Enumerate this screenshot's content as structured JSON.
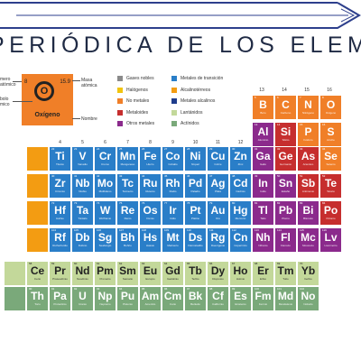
{
  "title": "PERIÓDICA DE LOS ELEMENTOS",
  "colors": {
    "gases_nobles": "#8a8a8a",
    "halogenos": "#f1c40f",
    "no_metales": "#f07f28",
    "metaloides": "#c62e2e",
    "otros_metales": "#8b2a8c",
    "transicion": "#2a7ec8",
    "alcalinoterreos": "#f39c12",
    "alcalinos": "#1e3c8c",
    "lantanidos": "#c3d89a",
    "actinidos": "#7aa97a",
    "title_text": "#1f2a44",
    "arrow": "#2d3f8c"
  },
  "legend": [
    {
      "name": "Gases nobles",
      "color": "#8a8a8a"
    },
    {
      "name": "Halógenos",
      "color": "#f1c40f"
    },
    {
      "name": "No metales",
      "color": "#f07f28"
    },
    {
      "name": "Metaloides",
      "color": "#c62e2e"
    },
    {
      "name": "Otros metales",
      "color": "#8b2a8c"
    },
    {
      "name": "Metales de transición",
      "color": "#2a7ec8"
    },
    {
      "name": "Alcalinotérreos",
      "color": "#f39c12"
    },
    {
      "name": "Metales alcalinos",
      "color": "#1e3c8c"
    },
    {
      "name": "Lantánidos",
      "color": "#c3d89a"
    },
    {
      "name": "Actínidos",
      "color": "#7aa97a"
    }
  ],
  "key": {
    "number": "8",
    "mass": "15.9",
    "symbol": "O",
    "name": "Oxígeno",
    "label_number": "mero\natómico",
    "label_symbol": "bolo\nmico",
    "label_mass": "Masa\natómica",
    "label_name": "Nombre"
  },
  "group_numbers_top": [
    "13",
    "14",
    "15",
    "16"
  ],
  "group_numbers_mid": [
    "4",
    "5",
    "6",
    "7",
    "8",
    "9",
    "10",
    "11",
    "12"
  ],
  "elements": [
    {
      "row": 0,
      "col": 0,
      "sym": "B",
      "name": "Boro",
      "num": "5",
      "color": "#f07f28"
    },
    {
      "row": 0,
      "col": 1,
      "sym": "C",
      "name": "Carbono",
      "num": "6",
      "color": "#f07f28"
    },
    {
      "row": 0,
      "col": 2,
      "sym": "N",
      "name": "Nitrógeno",
      "num": "7",
      "color": "#f07f28"
    },
    {
      "row": 0,
      "col": 3,
      "sym": "O",
      "name": "Oxígeno",
      "num": "8",
      "color": "#f07f28"
    },
    {
      "row": 1,
      "col": 0,
      "sym": "Al",
      "name": "Aluminio",
      "num": "13",
      "color": "#8b2a8c"
    },
    {
      "row": 1,
      "col": 1,
      "sym": "Si",
      "name": "Silicio",
      "num": "14",
      "color": "#c62e2e"
    },
    {
      "row": 1,
      "col": 2,
      "sym": "P",
      "name": "Fósforo",
      "num": "15",
      "color": "#f07f28"
    },
    {
      "row": 1,
      "col": 3,
      "sym": "S",
      "name": "Azufre",
      "num": "16",
      "color": "#f07f28"
    },
    {
      "row": 2,
      "col": -9,
      "sym": "Ti",
      "name": "Titanio",
      "num": "22",
      "color": "#2a7ec8"
    },
    {
      "row": 2,
      "col": -8,
      "sym": "V",
      "name": "Vanadio",
      "num": "23",
      "color": "#2a7ec8"
    },
    {
      "row": 2,
      "col": -7,
      "sym": "Cr",
      "name": "Cromo",
      "num": "24",
      "color": "#2a7ec8"
    },
    {
      "row": 2,
      "col": -6,
      "sym": "Mn",
      "name": "Manganeso",
      "num": "25",
      "color": "#2a7ec8"
    },
    {
      "row": 2,
      "col": -5,
      "sym": "Fe",
      "name": "Hierro",
      "num": "26",
      "color": "#2a7ec8"
    },
    {
      "row": 2,
      "col": -4,
      "sym": "Co",
      "name": "Cobalto",
      "num": "27",
      "color": "#2a7ec8"
    },
    {
      "row": 2,
      "col": -3,
      "sym": "Ni",
      "name": "Níquel",
      "num": "28",
      "color": "#2a7ec8"
    },
    {
      "row": 2,
      "col": -2,
      "sym": "Cu",
      "name": "Cobre",
      "num": "29",
      "color": "#2a7ec8"
    },
    {
      "row": 2,
      "col": -1,
      "sym": "Zn",
      "name": "Zinc",
      "num": "30",
      "color": "#2a7ec8"
    },
    {
      "row": 2,
      "col": 0,
      "sym": "Ga",
      "name": "Galio",
      "num": "31",
      "color": "#8b2a8c"
    },
    {
      "row": 2,
      "col": 1,
      "sym": "Ge",
      "name": "Germanio",
      "num": "32",
      "color": "#c62e2e"
    },
    {
      "row": 2,
      "col": 2,
      "sym": "As",
      "name": "Arsénico",
      "num": "33",
      "color": "#c62e2e"
    },
    {
      "row": 2,
      "col": 3,
      "sym": "Se",
      "name": "Selenio",
      "num": "34",
      "color": "#f07f28"
    },
    {
      "row": 3,
      "col": -9,
      "sym": "Zr",
      "name": "Circonio",
      "num": "40",
      "color": "#2a7ec8"
    },
    {
      "row": 3,
      "col": -8,
      "sym": "Nb",
      "name": "Niobio",
      "num": "41",
      "color": "#2a7ec8"
    },
    {
      "row": 3,
      "col": -7,
      "sym": "Mo",
      "name": "Molibdeno",
      "num": "42",
      "color": "#2a7ec8"
    },
    {
      "row": 3,
      "col": -6,
      "sym": "Tc",
      "name": "Tecnecio",
      "num": "43",
      "color": "#2a7ec8"
    },
    {
      "row": 3,
      "col": -5,
      "sym": "Ru",
      "name": "Rutenio",
      "num": "44",
      "color": "#2a7ec8"
    },
    {
      "row": 3,
      "col": -4,
      "sym": "Rh",
      "name": "Rodio",
      "num": "45",
      "color": "#2a7ec8"
    },
    {
      "row": 3,
      "col": -3,
      "sym": "Pd",
      "name": "Paladio",
      "num": "46",
      "color": "#2a7ec8"
    },
    {
      "row": 3,
      "col": -2,
      "sym": "Ag",
      "name": "Plata",
      "num": "47",
      "color": "#2a7ec8"
    },
    {
      "row": 3,
      "col": -1,
      "sym": "Cd",
      "name": "Cadmio",
      "num": "48",
      "color": "#2a7ec8"
    },
    {
      "row": 3,
      "col": 0,
      "sym": "In",
      "name": "Indio",
      "num": "49",
      "color": "#8b2a8c"
    },
    {
      "row": 3,
      "col": 1,
      "sym": "Sn",
      "name": "Estaño",
      "num": "50",
      "color": "#8b2a8c"
    },
    {
      "row": 3,
      "col": 2,
      "sym": "Sb",
      "name": "Antimonio",
      "num": "51",
      "color": "#c62e2e"
    },
    {
      "row": 3,
      "col": 3,
      "sym": "Te",
      "name": "Telurio",
      "num": "52",
      "color": "#c62e2e"
    },
    {
      "row": 4,
      "col": -9,
      "sym": "Hf",
      "name": "Hafnio",
      "num": "72",
      "color": "#2a7ec8"
    },
    {
      "row": 4,
      "col": -8,
      "sym": "Ta",
      "name": "Tántalo",
      "num": "73",
      "color": "#2a7ec8"
    },
    {
      "row": 4,
      "col": -7,
      "sym": "W",
      "name": "Wolframio",
      "num": "74",
      "color": "#2a7ec8"
    },
    {
      "row": 4,
      "col": -6,
      "sym": "Re",
      "name": "Renio",
      "num": "75",
      "color": "#2a7ec8"
    },
    {
      "row": 4,
      "col": -5,
      "sym": "Os",
      "name": "Osmio",
      "num": "76",
      "color": "#2a7ec8"
    },
    {
      "row": 4,
      "col": -4,
      "sym": "Ir",
      "name": "Iridio",
      "num": "77",
      "color": "#2a7ec8"
    },
    {
      "row": 4,
      "col": -3,
      "sym": "Pt",
      "name": "Platino",
      "num": "78",
      "color": "#2a7ec8"
    },
    {
      "row": 4,
      "col": -2,
      "sym": "Au",
      "name": "Oro",
      "num": "79",
      "color": "#2a7ec8"
    },
    {
      "row": 4,
      "col": -1,
      "sym": "Hg",
      "name": "Mercurio",
      "num": "80",
      "color": "#2a7ec8"
    },
    {
      "row": 4,
      "col": 0,
      "sym": "Tl",
      "name": "Talio",
      "num": "81",
      "color": "#8b2a8c"
    },
    {
      "row": 4,
      "col": 1,
      "sym": "Pb",
      "name": "Plomo",
      "num": "82",
      "color": "#8b2a8c"
    },
    {
      "row": 4,
      "col": 2,
      "sym": "Bi",
      "name": "Bismuto",
      "num": "83",
      "color": "#8b2a8c"
    },
    {
      "row": 4,
      "col": 3,
      "sym": "Po",
      "name": "Polonio",
      "num": "84",
      "color": "#c62e2e"
    },
    {
      "row": 5,
      "col": -9,
      "sym": "Rf",
      "name": "Rutherfordio",
      "num": "104",
      "color": "#2a7ec8"
    },
    {
      "row": 5,
      "col": -8,
      "sym": "Db",
      "name": "Dubnio",
      "num": "105",
      "color": "#2a7ec8"
    },
    {
      "row": 5,
      "col": -7,
      "sym": "Sg",
      "name": "Seaborgio",
      "num": "106",
      "color": "#2a7ec8"
    },
    {
      "row": 5,
      "col": -6,
      "sym": "Bh",
      "name": "Bohrio",
      "num": "107",
      "color": "#2a7ec8"
    },
    {
      "row": 5,
      "col": -5,
      "sym": "Hs",
      "name": "Hassio",
      "num": "108",
      "color": "#2a7ec8"
    },
    {
      "row": 5,
      "col": -4,
      "sym": "Mt",
      "name": "Meitnerio",
      "num": "109",
      "color": "#2a7ec8"
    },
    {
      "row": 5,
      "col": -3,
      "sym": "Ds",
      "name": "Darmstadtio",
      "num": "110",
      "color": "#2a7ec8"
    },
    {
      "row": 5,
      "col": -2,
      "sym": "Rg",
      "name": "Roentgenio",
      "num": "111",
      "color": "#2a7ec8"
    },
    {
      "row": 5,
      "col": -1,
      "sym": "Cn",
      "name": "Copernicio",
      "num": "112",
      "color": "#2a7ec8"
    },
    {
      "row": 5,
      "col": 0,
      "sym": "Nh",
      "name": "Nihonio",
      "num": "113",
      "color": "#8b2a8c"
    },
    {
      "row": 5,
      "col": 1,
      "sym": "Fl",
      "name": "Flerovio",
      "num": "114",
      "color": "#8b2a8c"
    },
    {
      "row": 5,
      "col": 2,
      "sym": "Mc",
      "name": "Moscovio",
      "num": "115",
      "color": "#8b2a8c"
    },
    {
      "row": 5,
      "col": 3,
      "sym": "Lv",
      "name": "Livermorio",
      "num": "116",
      "color": "#8b2a8c"
    },
    {
      "row": 6,
      "col": -10,
      "sym": "Ce",
      "name": "Cerio",
      "num": "58",
      "color": "#c3d89a"
    },
    {
      "row": 6,
      "col": -9,
      "sym": "Pr",
      "name": "Praseodimio",
      "num": "59",
      "color": "#c3d89a"
    },
    {
      "row": 6,
      "col": -8,
      "sym": "Nd",
      "name": "Neodimio",
      "num": "60",
      "color": "#c3d89a"
    },
    {
      "row": 6,
      "col": -7,
      "sym": "Pm",
      "name": "Prometio",
      "num": "61",
      "color": "#c3d89a"
    },
    {
      "row": 6,
      "col": -6,
      "sym": "Sm",
      "name": "Samario",
      "num": "62",
      "color": "#c3d89a"
    },
    {
      "row": 6,
      "col": -5,
      "sym": "Eu",
      "name": "Europio",
      "num": "63",
      "color": "#c3d89a"
    },
    {
      "row": 6,
      "col": -4,
      "sym": "Gd",
      "name": "Gadolinio",
      "num": "64",
      "color": "#c3d89a"
    },
    {
      "row": 6,
      "col": -3,
      "sym": "Tb",
      "name": "Terbio",
      "num": "65",
      "color": "#c3d89a"
    },
    {
      "row": 6,
      "col": -2,
      "sym": "Dy",
      "name": "Disprosio",
      "num": "66",
      "color": "#c3d89a"
    },
    {
      "row": 6,
      "col": -1,
      "sym": "Ho",
      "name": "Holmio",
      "num": "67",
      "color": "#c3d89a"
    },
    {
      "row": 6,
      "col": 0,
      "sym": "Er",
      "name": "Erbio",
      "num": "68",
      "color": "#c3d89a"
    },
    {
      "row": 6,
      "col": 1,
      "sym": "Tm",
      "name": "Tulio",
      "num": "69",
      "color": "#c3d89a"
    },
    {
      "row": 6,
      "col": 2,
      "sym": "Yb",
      "name": "Iterbio",
      "num": "70",
      "color": "#c3d89a"
    },
    {
      "row": 7,
      "col": -10,
      "sym": "Th",
      "name": "Torio",
      "num": "90",
      "color": "#7aa97a"
    },
    {
      "row": 7,
      "col": -9,
      "sym": "Pa",
      "name": "Protactinio",
      "num": "91",
      "color": "#7aa97a"
    },
    {
      "row": 7,
      "col": -8,
      "sym": "U",
      "name": "Uranio",
      "num": "92",
      "color": "#7aa97a"
    },
    {
      "row": 7,
      "col": -7,
      "sym": "Np",
      "name": "Neptunio",
      "num": "93",
      "color": "#7aa97a"
    },
    {
      "row": 7,
      "col": -6,
      "sym": "Pu",
      "name": "Plutonio",
      "num": "94",
      "color": "#7aa97a"
    },
    {
      "row": 7,
      "col": -5,
      "sym": "Am",
      "name": "Americio",
      "num": "95",
      "color": "#7aa97a"
    },
    {
      "row": 7,
      "col": -4,
      "sym": "Cm",
      "name": "Curio",
      "num": "96",
      "color": "#7aa97a"
    },
    {
      "row": 7,
      "col": -3,
      "sym": "Bk",
      "name": "Berkelio",
      "num": "97",
      "color": "#7aa97a"
    },
    {
      "row": 7,
      "col": -2,
      "sym": "Cf",
      "name": "Californio",
      "num": "98",
      "color": "#7aa97a"
    },
    {
      "row": 7,
      "col": -1,
      "sym": "Es",
      "name": "Einstenio",
      "num": "99",
      "color": "#7aa97a"
    },
    {
      "row": 7,
      "col": 0,
      "sym": "Fm",
      "name": "Fermio",
      "num": "100",
      "color": "#7aa97a"
    },
    {
      "row": 7,
      "col": 1,
      "sym": "Md",
      "name": "Mendelevio",
      "num": "101",
      "color": "#7aa97a"
    },
    {
      "row": 7,
      "col": 2,
      "sym": "No",
      "name": "Nobelio",
      "num": "102",
      "color": "#7aa97a"
    }
  ],
  "partial_cells": [
    {
      "row": 2,
      "color": "#f39c12"
    },
    {
      "row": 3,
      "color": "#f39c12"
    },
    {
      "row": 4,
      "color": "#f39c12"
    },
    {
      "row": 5,
      "color": "#f39c12"
    },
    {
      "row": 6,
      "color": "#c3d89a"
    },
    {
      "row": 7,
      "color": "#7aa97a"
    }
  ]
}
